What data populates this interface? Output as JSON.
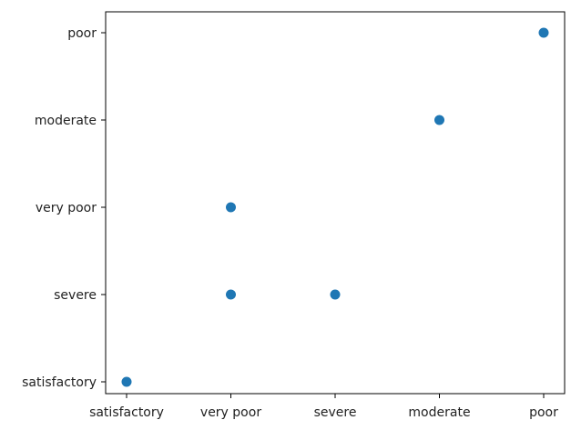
{
  "chart_data": {
    "type": "scatter",
    "title": "",
    "xlabel": "",
    "ylabel": "",
    "x_categories": [
      "satisfactory",
      "very poor",
      "severe",
      "moderate",
      "poor"
    ],
    "y_categories": [
      "satisfactory",
      "severe",
      "very poor",
      "moderate",
      "poor"
    ],
    "points": [
      {
        "x": "satisfactory",
        "y": "satisfactory"
      },
      {
        "x": "very poor",
        "y": "severe"
      },
      {
        "x": "very poor",
        "y": "very poor"
      },
      {
        "x": "severe",
        "y": "severe"
      },
      {
        "x": "moderate",
        "y": "moderate"
      },
      {
        "x": "poor",
        "y": "poor"
      }
    ],
    "grid": false,
    "marker_color": "#1f77b4"
  }
}
